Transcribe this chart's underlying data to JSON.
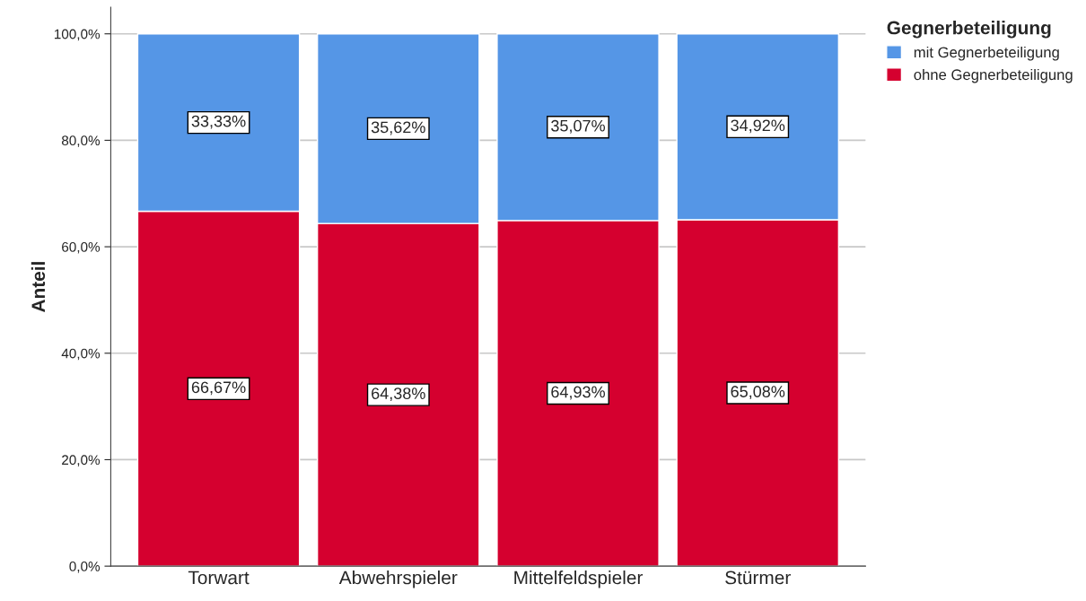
{
  "chart_data": {
    "type": "bar",
    "stacked": true,
    "ylabel": "Anteil",
    "legend_title": "Gegnerbeteiligung",
    "categories": [
      "Torwart",
      "Abwehrspieler",
      "Mittelfeldspieler",
      "Stürmer"
    ],
    "series": [
      {
        "name": "ohne Gegnerbeteiligung",
        "color": "#d5002f",
        "values": [
          66.67,
          64.38,
          64.93,
          65.08
        ],
        "value_labels": [
          "66,67%",
          "64,38%",
          "64,93%",
          "65,08%"
        ]
      },
      {
        "name": "mit Gegnerbeteiligung",
        "color": "#5596e6",
        "values": [
          33.33,
          35.62,
          35.07,
          34.92
        ],
        "value_labels": [
          "33,33%",
          "35,62%",
          "35,07%",
          "34,92%"
        ]
      }
    ],
    "ylim": [
      0,
      105
    ],
    "yticks": [
      {
        "value": 0,
        "label": "0,0%"
      },
      {
        "value": 20,
        "label": "20,0%"
      },
      {
        "value": 40,
        "label": "40,0%"
      },
      {
        "value": 60,
        "label": "60,0%"
      },
      {
        "value": 80,
        "label": "80,0%"
      },
      {
        "value": 100,
        "label": "100,0%"
      }
    ],
    "grid": "y",
    "legend": "top right"
  }
}
